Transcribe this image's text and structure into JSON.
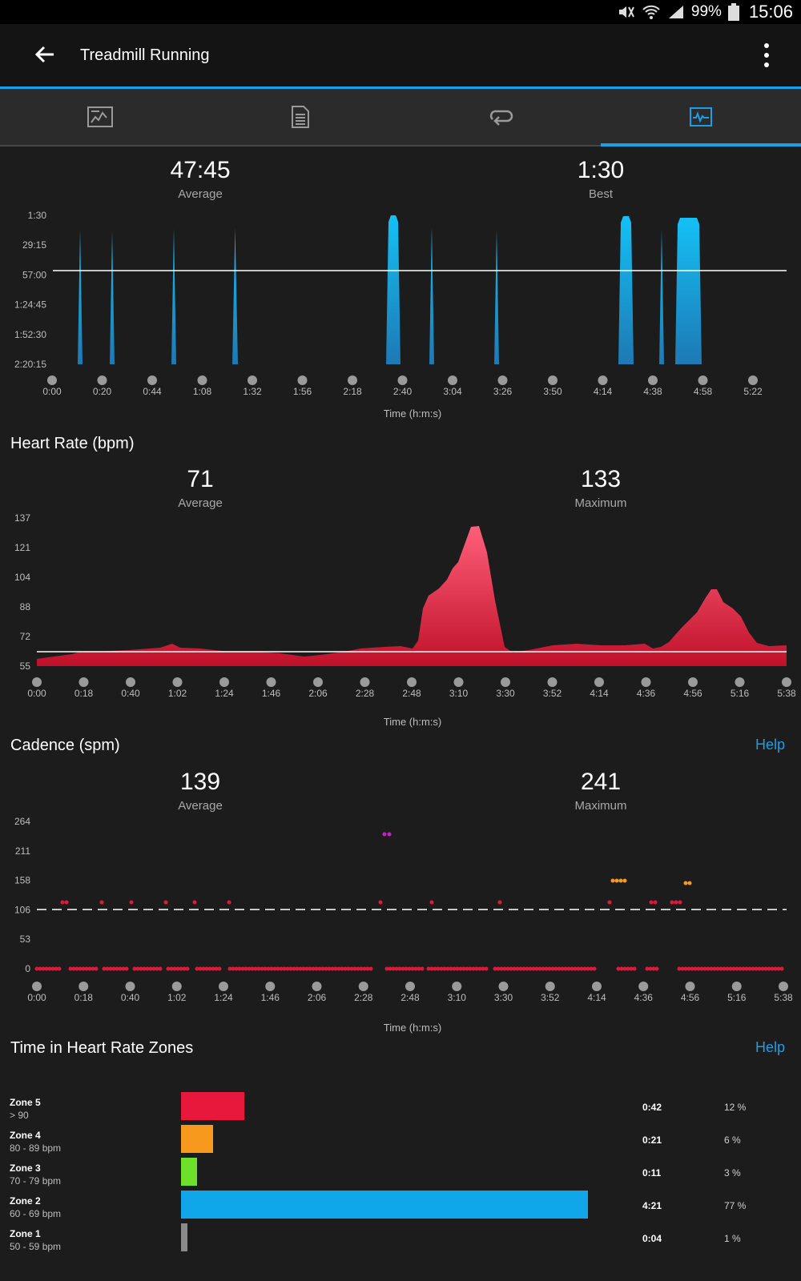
{
  "status_bar": {
    "battery": "99%",
    "time": "15:06"
  },
  "app_bar": {
    "title": "Treadmill Running"
  },
  "tabs": [
    {
      "icon": "summary-icon"
    },
    {
      "icon": "details-icon"
    },
    {
      "icon": "laps-icon"
    },
    {
      "icon": "charts-icon",
      "active": true
    }
  ],
  "pace": {
    "average": "47:45",
    "average_label": "Average",
    "best": "1:30",
    "best_label": "Best",
    "xlabel": "Time (h:m:s)",
    "y_ticks": [
      "1:30",
      "29:15",
      "57:00",
      "1:24:45",
      "1:52:30",
      "2:20:15"
    ],
    "x_ticks": [
      "0:00",
      "0:20",
      "0:44",
      "1:08",
      "1:32",
      "1:56",
      "2:18",
      "2:40",
      "3:04",
      "3:26",
      "3:50",
      "4:14",
      "4:38",
      "4:58",
      "5:22"
    ],
    "color": "#1aa0e0"
  },
  "heart_rate": {
    "title": "Heart Rate (bpm)",
    "average": "71",
    "average_label": "Average",
    "max": "133",
    "max_label": "Maximum",
    "xlabel": "Time (h:m:s)",
    "y_ticks": [
      "137",
      "121",
      "104",
      "88",
      "72",
      "55"
    ],
    "x_ticks": [
      "0:00",
      "0:18",
      "0:40",
      "1:02",
      "1:24",
      "1:46",
      "2:06",
      "2:28",
      "2:48",
      "3:10",
      "3:30",
      "3:52",
      "4:14",
      "4:36",
      "4:56",
      "5:16",
      "5:38"
    ],
    "color": "#e0193a"
  },
  "cadence": {
    "title": "Cadence (spm)",
    "help": "Help",
    "average": "139",
    "average_label": "Average",
    "max": "241",
    "max_label": "Maximum",
    "xlabel": "Time (h:m:s)",
    "y_ticks": [
      "264",
      "211",
      "158",
      "106",
      "53",
      "0"
    ],
    "x_ticks": [
      "0:00",
      "0:18",
      "0:40",
      "1:02",
      "1:24",
      "1:46",
      "2:06",
      "2:28",
      "2:48",
      "3:10",
      "3:30",
      "3:52",
      "4:14",
      "4:36",
      "4:56",
      "5:16",
      "5:38"
    ]
  },
  "hr_zones": {
    "title": "Time in Heart Rate Zones",
    "help": "Help",
    "zones": [
      {
        "name": "Zone 5",
        "range": "> 90",
        "time": "0:42",
        "percent": "12 %",
        "fraction": 0.12,
        "color": "#e8173c"
      },
      {
        "name": "Zone 4",
        "range": "80 - 89 bpm",
        "time": "0:21",
        "percent": "6 %",
        "fraction": 0.06,
        "color": "#f7991c"
      },
      {
        "name": "Zone 3",
        "range": "70 - 79 bpm",
        "time": "0:11",
        "percent": "3 %",
        "fraction": 0.03,
        "color": "#6ee02b"
      },
      {
        "name": "Zone 2",
        "range": "60 - 69 bpm",
        "time": "4:21",
        "percent": "77 %",
        "fraction": 0.77,
        "color": "#10a6ea"
      },
      {
        "name": "Zone 1",
        "range": "50 - 59 bpm",
        "time": "0:04",
        "percent": "1 %",
        "fraction": 0.01,
        "color": "#8a8a8a"
      }
    ]
  }
}
